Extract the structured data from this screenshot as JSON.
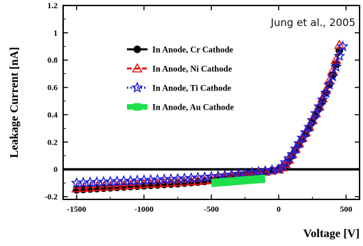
{
  "chart_data": {
    "type": "line",
    "title": "",
    "xlabel": "Voltage [V]",
    "ylabel": "Leakage Current [nA]",
    "xlim": [
      -1600,
      600
    ],
    "ylim": [
      -0.22,
      1.2
    ],
    "xticks": [
      -1500,
      -1000,
      -500,
      0,
      500
    ],
    "xtick_labels": [
      "-1500",
      "-1000",
      "-500",
      "0",
      "500"
    ],
    "yticks": [
      -0.2,
      0,
      0.2,
      0.4,
      0.6,
      0.8,
      1,
      1.2
    ],
    "ytick_labels": [
      "-0.2",
      "0",
      "0.2",
      "0.4",
      "0.6",
      "0.8",
      "1",
      "1.2"
    ],
    "annotation": "Jung et al., 2005",
    "legend_position": "upper-center",
    "zero_line": true,
    "series": [
      {
        "name": "In Anode, Cr Cathode",
        "color": "#000000",
        "marker": "circle",
        "line_style": "solid",
        "x": [
          -1500,
          -1450,
          -1400,
          -1350,
          -1300,
          -1250,
          -1200,
          -1150,
          -1100,
          -1050,
          -1000,
          -950,
          -900,
          -850,
          -800,
          -750,
          -700,
          -650,
          -600,
          -550,
          -500,
          -450,
          -400,
          -350,
          -300,
          -250,
          -200,
          -150,
          -100,
          -50,
          0,
          25,
          50,
          75,
          100,
          125,
          150,
          175,
          200,
          225,
          250,
          275,
          300,
          325,
          350,
          375,
          400,
          425,
          450
        ],
        "y": [
          -0.15,
          -0.147,
          -0.144,
          -0.141,
          -0.138,
          -0.135,
          -0.132,
          -0.129,
          -0.126,
          -0.123,
          -0.12,
          -0.117,
          -0.114,
          -0.111,
          -0.108,
          -0.105,
          -0.101,
          -0.097,
          -0.093,
          -0.088,
          -0.08,
          -0.072,
          -0.064,
          -0.056,
          -0.048,
          -0.04,
          -0.032,
          -0.024,
          -0.016,
          -0.008,
          0.0,
          0.01,
          0.03,
          0.06,
          0.1,
          0.14,
          0.18,
          0.22,
          0.26,
          0.3,
          0.35,
          0.4,
          0.45,
          0.5,
          0.56,
          0.62,
          0.69,
          0.77,
          0.87
        ]
      },
      {
        "name": "In Anode, Ni Cathode",
        "color": "#e51c1c",
        "marker": "triangle",
        "line_style": "dashed",
        "x": [
          -1500,
          -1450,
          -1400,
          -1350,
          -1300,
          -1250,
          -1200,
          -1150,
          -1100,
          -1050,
          -1000,
          -950,
          -900,
          -850,
          -800,
          -750,
          -700,
          -650,
          -600,
          -550,
          -500,
          -450,
          -400,
          -350,
          -300,
          -250,
          -200,
          -150,
          -100,
          -50,
          0,
          25,
          50,
          75,
          100,
          125,
          150,
          175,
          200,
          225,
          250,
          275,
          300,
          325,
          350,
          375,
          400,
          425,
          450
        ],
        "y": [
          -0.14,
          -0.137,
          -0.134,
          -0.131,
          -0.128,
          -0.125,
          -0.122,
          -0.119,
          -0.116,
          -0.113,
          -0.11,
          -0.107,
          -0.104,
          -0.101,
          -0.098,
          -0.095,
          -0.092,
          -0.089,
          -0.086,
          -0.082,
          -0.075,
          -0.068,
          -0.061,
          -0.054,
          -0.047,
          -0.04,
          -0.033,
          -0.026,
          -0.018,
          -0.009,
          0.0,
          0.015,
          0.04,
          0.07,
          0.11,
          0.15,
          0.19,
          0.23,
          0.27,
          0.31,
          0.36,
          0.41,
          0.46,
          0.52,
          0.58,
          0.65,
          0.72,
          0.8,
          0.91
        ]
      },
      {
        "name": "In Anode, Ti Cathode",
        "color": "#1f1fd6",
        "marker": "star",
        "line_style": "dotted",
        "x": [
          -1500,
          -1450,
          -1400,
          -1350,
          -1300,
          -1250,
          -1200,
          -1150,
          -1100,
          -1050,
          -1000,
          -950,
          -900,
          -850,
          -800,
          -750,
          -700,
          -650,
          -600,
          -550,
          -500,
          -450,
          -400,
          -350,
          -300,
          -250,
          -200,
          -150,
          -100,
          -50,
          0,
          25,
          50,
          75,
          100,
          125,
          150,
          175,
          200,
          225,
          250,
          275,
          300,
          325,
          350,
          375,
          400,
          425,
          450,
          475
        ],
        "y": [
          -0.1,
          -0.098,
          -0.096,
          -0.094,
          -0.092,
          -0.09,
          -0.088,
          -0.086,
          -0.084,
          -0.082,
          -0.08,
          -0.078,
          -0.076,
          -0.074,
          -0.072,
          -0.07,
          -0.067,
          -0.064,
          -0.061,
          -0.058,
          -0.054,
          -0.05,
          -0.045,
          -0.04,
          -0.035,
          -0.03,
          -0.024,
          -0.018,
          -0.012,
          -0.006,
          0.0,
          0.02,
          0.05,
          0.08,
          0.11,
          0.15,
          0.19,
          0.23,
          0.27,
          0.31,
          0.36,
          0.41,
          0.46,
          0.51,
          0.56,
          0.62,
          0.68,
          0.75,
          0.83,
          0.9
        ]
      },
      {
        "name": "In Anode, Au Cathode",
        "color": "#1ee04a",
        "marker": "square",
        "line_style": "dashed",
        "x": [
          -500,
          -475,
          -450,
          -425,
          -400,
          -375,
          -350,
          -325,
          -300,
          -275,
          -250,
          -225,
          -200,
          -175,
          -150,
          -125,
          -100
        ],
        "y": [
          -0.1,
          -0.098,
          -0.096,
          -0.094,
          -0.092,
          -0.09,
          -0.088,
          -0.086,
          -0.084,
          -0.082,
          -0.08,
          -0.078,
          -0.076,
          -0.074,
          -0.072,
          -0.07,
          -0.068
        ]
      }
    ]
  }
}
